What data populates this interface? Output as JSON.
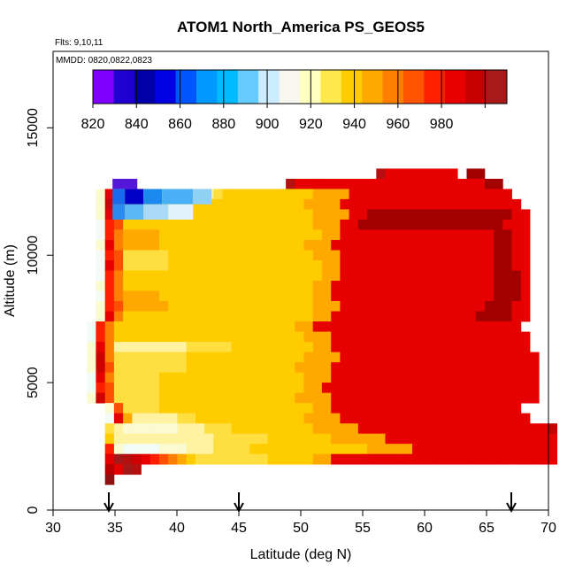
{
  "chart_data": {
    "type": "heatmap",
    "title": "ATOM1 North_America PS_GEOS5",
    "subtitle_lines": [
      "Flts: 9,10,11",
      "MMDD: 0820,0822,0823"
    ],
    "xlabel": "Latitude (deg N)",
    "ylabel": "Altitude (m)",
    "xlim": [
      30,
      70
    ],
    "ylim": [
      0,
      18000
    ],
    "xticks": [
      30,
      35,
      40,
      45,
      50,
      55,
      60,
      65,
      70
    ],
    "yticks": [
      0,
      5000,
      10000,
      15000
    ],
    "grid": false,
    "colorbar": {
      "placement": "top-left inside plot",
      "range": [
        820,
        1010
      ],
      "tick_values": [
        820,
        840,
        860,
        880,
        900,
        920,
        940,
        960,
        980
      ],
      "colors": [
        "#7f00ff",
        "#2000d0",
        "#0000a8",
        "#0000e0",
        "#0055ff",
        "#0099ff",
        "#00bbff",
        "#66ccff",
        "#ccecff",
        "#f7f7f0",
        "#ffffc0",
        "#ffe84c",
        "#ffcc00",
        "#ffa800",
        "#ff8000",
        "#ff5500",
        "#ff2000",
        "#e80000",
        "#c80000",
        "#a81a1a"
      ]
    },
    "markers": {
      "latitudes": [
        34.5,
        45,
        67
      ],
      "symbol": "down-arrow"
    },
    "value_grid": {
      "lat_start": 34.5,
      "lat_step": 1,
      "alt_start": 1000,
      "alt_step": 500,
      "rows": [
        "---------------------------------lnnnnnnnn-qq------",
        "-----------------------lnnnnnnnnnnnnnnnnnnnnnqq-----",
        "--bjiffccccccccdeeeeeeeeeeffffnnnnnnnnnnnnnnnnnn----",
        "--bkgeeeeeeeeeeeeeeeeeeeeffffnnnnnnnnnnnnnnnnnnnn---",
        "--bjhfffffeeeeeeeeeeeeeeeeffffnnqqqqqqqqqqqqqqqqnn--",
        "--aiheeeeeeeeeeeeeeeeeeeeefffnnqqqqqqqqqqqqqqqqnnn--",
        "--aigffffeeeeeeeeeeeeeeeeeeffnnnnnnnnnnnnnnnnnqqnn--",
        "--bjgffffeeeeeeeeeeeeeeeefffnnnnnnnnnnnnnnnnnnqqnn--",
        "--aihdddddeeeeeeeeeeeeeeeefffnnnnnnnnnnnnnnnnnqqnn--",
        "--ajhdddddeeeeeeeeeeeeeeeeeffnnnnnnnnnnnnnnnnnqqnn--",
        "--aigeeeeeeeeeeeeeeeeeeeeeeffnnnnnnnnnnnnnnnnnqqqn--",
        "--bigeeeeeeeeeeeeeeeeeeeeeffnnnnnnnnnnnnnnnnnnqqqn--",
        "--aigffffeeeeeeeeeeeeeeeeeffnnnnnnnnnnnnnnnnnnqqqn--",
        "--bihfffffeeeeeeeeeeeeeeeefffnnnnnnnnnnnnnnnnqqqnn--",
        "--bjgeeeeeeeeeeeeeeeeeeeeeffnnnnnnnnnnnnnnnnqqqqnn--",
        "-aigeeeeeeeeeeeeeeeeeeeeffnnnnnnnnnnnnnnnnnnnnnnn--",
        "-aigeeeeeeeeeeeeeeeeeeeeefffnnnnnnnnnnnnnnnnnnnnnn--",
        "-bjgccccccccdddddeeeeeeeeeffnnnnnnnnnnnnnnnnnnnnnn--",
        "-bkgddddddddeeeeeeeeeeeeeffffnnnnnnnnnnnnnnnnnnnnnn-",
        "-bkhddddddddeeeeeeeeeeeeffffnnnnnnnnnnnnnnnnnnnnnnn-",
        "-ajgdddddeeeeeeeeeeeeeeeefffnnnnnnnnnnnnnnnnnnnnnnn-",
        "-aihdddddeeeeeeeeeeeeeeeeffnnnnnnnnnnnnnnnnnnnnnnnn-",
        "-bkhdddddeeeeeeeeeeeeeeeffffnnnnnnnnnnnnnnnnnnnnnnn-",
        "---bhddddeeeeeeeeeeeeeeeeeffnnnnnnnnnnnnnnnnnnnnn---",
        "---ajfcccccddeeeeeeeeeeeeffffnnnnnnnnnnnnnnnnnnnnn---",
        "---dcbbbbbbcccdddeeeeeeeeefffffnnnnnnnnnnnnnnnnnnnnno",
        "---ecccccccccccddddddeeeeeeeffffffnnnnnnnnnnnnnnnnnnn",
        "---ibaaaabbbcccddddeeeeeeeeeeeeefffffnnnnnnnnnnnnnnnn",
        "---nmlkjihgfeddddddddeeeeeffnnnnnnnnnnnnnnnnnnnnnnnnn",
        "---pnml-------------------------------------------------",
        "---s---------------------------------------------------"
      ]
    }
  }
}
